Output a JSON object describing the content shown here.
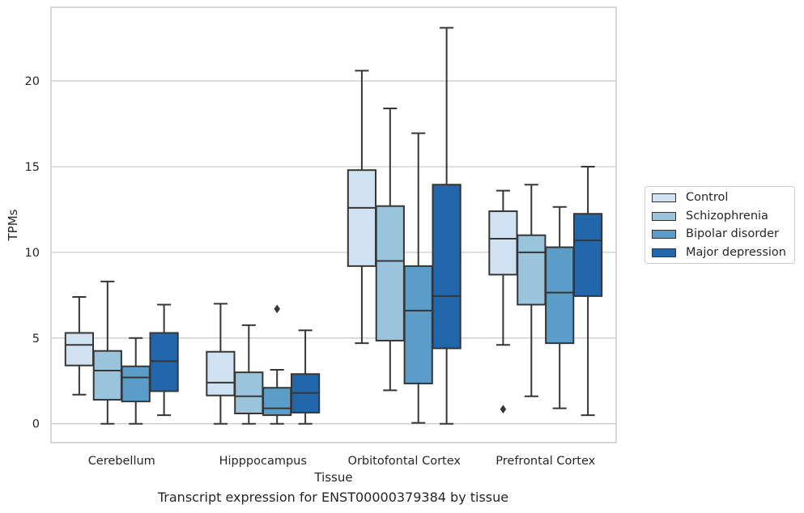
{
  "caption": "Transcript expression for ENST00000379384 by tissue",
  "chart_data": {
    "type": "box",
    "xlabel": "Tissue",
    "ylabel": "TPMs",
    "ylim": [
      -1.1,
      24.3
    ],
    "yticks": [
      0,
      5,
      10,
      15,
      20
    ],
    "grid": "horizontal",
    "legend_position": "right",
    "categories": [
      "Cerebellum",
      "Hipppocampus",
      "Orbitofontal Cortex",
      "Prefrontal Cortex"
    ],
    "series": [
      {
        "name": "Control",
        "color": "#d0e2f2",
        "boxes": [
          {
            "min": 1.7,
            "q1": 3.4,
            "median": 4.6,
            "q3": 5.3,
            "max": 7.4,
            "outliers": []
          },
          {
            "min": 0.0,
            "q1": 1.65,
            "median": 2.4,
            "q3": 4.2,
            "max": 7.0,
            "outliers": []
          },
          {
            "min": 4.7,
            "q1": 9.2,
            "median": 12.6,
            "q3": 14.8,
            "max": 20.6,
            "outliers": []
          },
          {
            "min": 4.6,
            "q1": 8.7,
            "median": 10.8,
            "q3": 12.4,
            "max": 13.6,
            "outliers": [
              0.85
            ]
          }
        ]
      },
      {
        "name": "Schizophrenia",
        "color": "#9ac3dc",
        "boxes": [
          {
            "min": 0.0,
            "q1": 1.4,
            "median": 3.1,
            "q3": 4.25,
            "max": 8.3,
            "outliers": []
          },
          {
            "min": 0.0,
            "q1": 0.6,
            "median": 1.6,
            "q3": 3.0,
            "max": 5.75,
            "outliers": []
          },
          {
            "min": 1.95,
            "q1": 4.85,
            "median": 9.5,
            "q3": 12.7,
            "max": 18.4,
            "outliers": []
          },
          {
            "min": 1.6,
            "q1": 6.95,
            "median": 10.0,
            "q3": 11.0,
            "max": 13.95,
            "outliers": []
          }
        ]
      },
      {
        "name": "Bipolar disorder",
        "color": "#5b9cc8",
        "boxes": [
          {
            "min": 0.0,
            "q1": 1.3,
            "median": 2.7,
            "q3": 3.35,
            "max": 5.0,
            "outliers": []
          },
          {
            "min": 0.0,
            "q1": 0.5,
            "median": 0.9,
            "q3": 2.1,
            "max": 3.15,
            "outliers": [
              6.7
            ]
          },
          {
            "min": 0.05,
            "q1": 2.35,
            "median": 6.6,
            "q3": 9.2,
            "max": 16.95,
            "outliers": []
          },
          {
            "min": 0.9,
            "q1": 4.7,
            "median": 7.65,
            "q3": 10.3,
            "max": 12.65,
            "outliers": []
          }
        ]
      },
      {
        "name": "Major depression",
        "color": "#2266ab",
        "boxes": [
          {
            "min": 0.5,
            "q1": 1.9,
            "median": 3.65,
            "q3": 5.3,
            "max": 6.95,
            "outliers": []
          },
          {
            "min": 0.0,
            "q1": 0.65,
            "median": 1.8,
            "q3": 2.9,
            "max": 5.45,
            "outliers": []
          },
          {
            "min": 0.0,
            "q1": 4.4,
            "median": 7.45,
            "q3": 13.95,
            "max": 23.1,
            "outliers": []
          },
          {
            "min": 0.5,
            "q1": 7.45,
            "median": 10.7,
            "q3": 12.25,
            "max": 15.0,
            "outliers": []
          }
        ]
      }
    ]
  }
}
